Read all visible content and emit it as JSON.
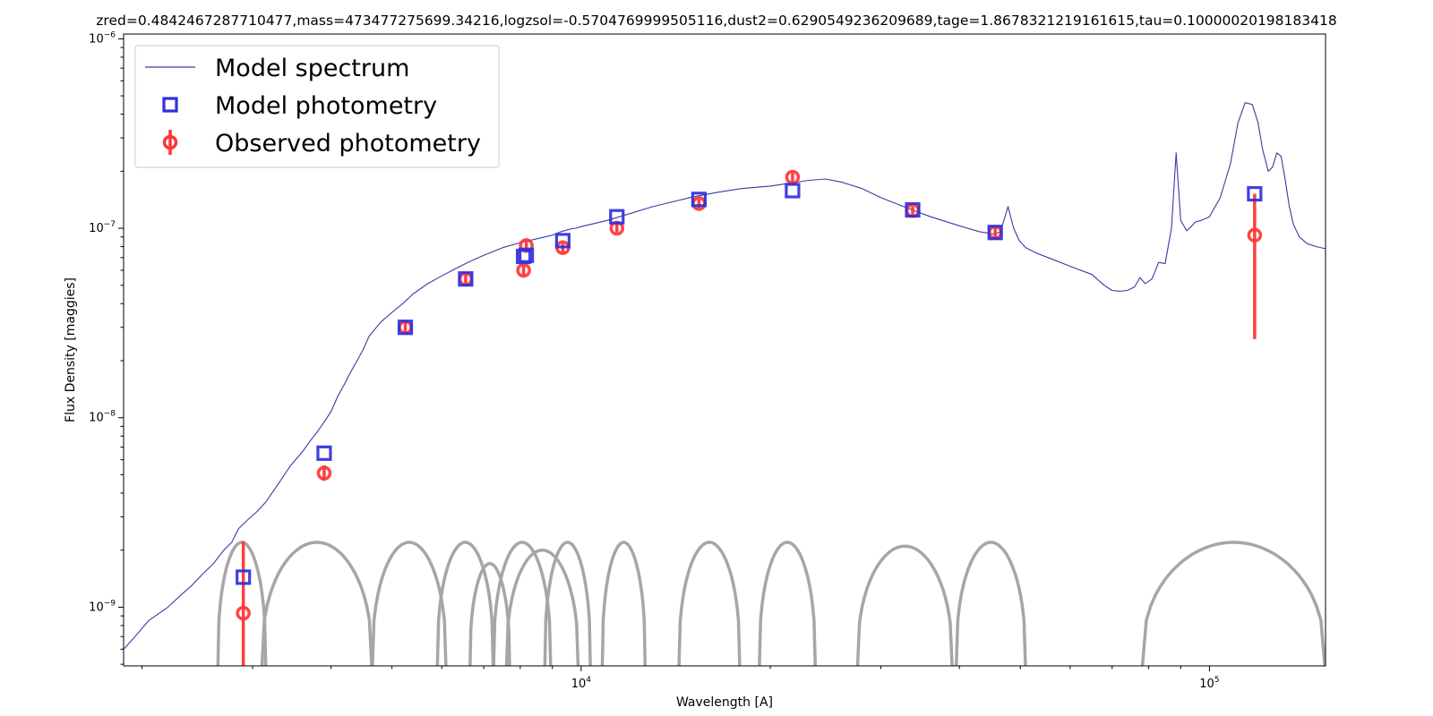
{
  "chart_data": {
    "type": "line",
    "title": "zred=0.4842467287710477,mass=473477275699.34216,logzsol=-0.5704769999505116,dust2=0.6290549236209689,tage=1.8678321219161615,tau=0.10000020198183418",
    "xlabel": "Wavelength [A]",
    "ylabel": "Flux Density [maggies]",
    "xscale": "log",
    "yscale": "log",
    "xlim": [
      1870,
      153000
    ],
    "ylim": [
      4.9e-10,
      1.06e-06
    ],
    "x_ticks": [
      {
        "value": 10000,
        "label": "10",
        "exp": "4"
      },
      {
        "value": 100000,
        "label": "10",
        "exp": "5"
      }
    ],
    "y_ticks": [
      {
        "value": 1e-09,
        "label": "10",
        "exp": "−9"
      },
      {
        "value": 1e-08,
        "label": "10",
        "exp": "−8"
      },
      {
        "value": 1e-07,
        "label": "10",
        "exp": "−7"
      },
      {
        "value": 1e-06,
        "label": "10",
        "exp": "−6"
      }
    ],
    "legend_position": "upper-left",
    "grid": false,
    "series": [
      {
        "name": "Model spectrum",
        "kind": "line",
        "color": "#3a3aa3",
        "x": [
          1870,
          1950,
          2050,
          2200,
          2300,
          2400,
          2500,
          2600,
          2700,
          2780,
          2850,
          2950,
          3050,
          3150,
          3300,
          3450,
          3600,
          3700,
          3800,
          3900,
          4000,
          4100,
          4200,
          4300,
          4400,
          4500,
          4600,
          4800,
          5000,
          5200,
          5400,
          5700,
          6000,
          6300,
          6600,
          7000,
          7500,
          8000,
          8500,
          9000,
          9300,
          9600,
          9800,
          10000,
          10500,
          11000,
          12000,
          13000,
          14000,
          15000,
          16500,
          18000,
          20000,
          21500,
          23000,
          24500,
          26000,
          28000,
          30000,
          33000,
          36000,
          40000,
          43000,
          45500,
          46500,
          47800,
          48800,
          49800,
          51000,
          53000,
          56000,
          60000,
          65000,
          68000,
          70000,
          72000,
          74000,
          76000,
          77500,
          79000,
          81000,
          83000,
          85000,
          87000,
          88500,
          90000,
          92000,
          93500,
          95000,
          97000,
          100000,
          104000,
          108000,
          111000,
          114000,
          117000,
          119500,
          121500,
          124000,
          126000,
          128000,
          130000,
          132000,
          134000,
          136000,
          139000,
          143000,
          148000,
          153000
        ],
        "y": [
          6e-10,
          7e-10,
          8.5e-10,
          1e-09,
          1.15e-09,
          1.3e-09,
          1.5e-09,
          1.7e-09,
          2e-09,
          2.2e-09,
          2.6e-09,
          2.9e-09,
          3.2e-09,
          3.6e-09,
          4.5e-09,
          5.6e-09,
          6.6e-09,
          7.5e-09,
          8.4e-09,
          9.5e-09,
          1.08e-08,
          1.3e-08,
          1.5e-08,
          1.75e-08,
          2e-08,
          2.3e-08,
          2.7e-08,
          3.2e-08,
          3.6e-08,
          4e-08,
          4.5e-08,
          5.1e-08,
          5.6e-08,
          6.1e-08,
          6.6e-08,
          7.2e-08,
          7.9e-08,
          8.4e-08,
          8.8e-08,
          9.2e-08,
          9.6e-08,
          9.9e-08,
          1e-07,
          1.02e-07,
          1.06e-07,
          1.1e-07,
          1.2e-07,
          1.3e-07,
          1.38e-07,
          1.46e-07,
          1.55e-07,
          1.62e-07,
          1.67e-07,
          1.73e-07,
          1.79e-07,
          1.82e-07,
          1.75e-07,
          1.62e-07,
          1.45e-07,
          1.28e-07,
          1.15e-07,
          1.03e-07,
          9.6e-08,
          9.3e-08,
          9.6e-08,
          1.3e-07,
          1e-07,
          8.6e-08,
          7.9e-08,
          7.4e-08,
          6.9e-08,
          6.3e-08,
          5.7e-08,
          5e-08,
          4.7e-08,
          4.65e-08,
          4.7e-08,
          4.9e-08,
          5.5e-08,
          5.1e-08,
          5.4e-08,
          6.6e-08,
          6.5e-08,
          1e-07,
          2.5e-07,
          1.1e-07,
          9.7e-08,
          1.02e-07,
          1.08e-07,
          1.1e-07,
          1.15e-07,
          1.45e-07,
          2.2e-07,
          3.6e-07,
          4.6e-07,
          4.5e-07,
          3.6e-07,
          2.6e-07,
          2e-07,
          2.1e-07,
          2.5e-07,
          2.4e-07,
          1.8e-07,
          1.3e-07,
          1.05e-07,
          9e-08,
          8.3e-08,
          8e-08,
          7.8e-08
        ]
      },
      {
        "name": "Model photometry",
        "kind": "markers",
        "marker": "square",
        "color": "#2f2fe0",
        "x": [
          2900,
          3900,
          5250,
          6550,
          8100,
          8180,
          9350,
          11400,
          15400,
          21700,
          33700,
          45600,
          118000
        ],
        "y": [
          1.44e-09,
          6.5e-09,
          3e-08,
          5.4e-08,
          7.1e-08,
          7.2e-08,
          8.6e-08,
          1.15e-07,
          1.42e-07,
          1.58e-07,
          1.25e-07,
          9.5e-08,
          1.52e-07
        ]
      },
      {
        "name": "Observed photometry",
        "kind": "errorbar",
        "marker": "circle",
        "color": "#ff3535",
        "x": [
          2900,
          3900,
          5250,
          6550,
          8100,
          8180,
          9350,
          11400,
          15400,
          21700,
          33700,
          45600,
          118000
        ],
        "y": [
          9.3e-10,
          5.1e-09,
          3e-08,
          5.4e-08,
          6e-08,
          8.1e-08,
          7.9e-08,
          1e-07,
          1.35e-07,
          1.86e-07,
          1.24e-07,
          9.5e-08,
          9.2e-08
        ],
        "yerr_low": [
          4.4e-10,
          4.5e-10,
          2e-09,
          3e-09,
          4e-09,
          4e-09,
          4e-09,
          5e-09,
          7e-09,
          1e-08,
          6e-09,
          5e-09,
          6.6e-08
        ],
        "yerr_high": [
          1.3e-09,
          5e-10,
          2e-09,
          3e-09,
          4e-09,
          4e-09,
          4e-09,
          5e-09,
          7e-09,
          1e-08,
          6e-09,
          5e-09,
          6e-08
        ]
      }
    ],
    "filter_curves": {
      "color": "#a6a6a6",
      "curves": [
        {
          "lo": 2640,
          "hi": 3150,
          "peak": 2.2e-09
        },
        {
          "lo": 3100,
          "hi": 4650,
          "peak": 2.2e-09
        },
        {
          "lo": 4650,
          "hi": 6100,
          "peak": 2.2e-09
        },
        {
          "lo": 5900,
          "hi": 7250,
          "peak": 2.2e-09
        },
        {
          "lo": 6650,
          "hi": 7700,
          "peak": 1.7e-09
        },
        {
          "lo": 7250,
          "hi": 8950,
          "peak": 2.2e-09
        },
        {
          "lo": 7600,
          "hi": 9900,
          "peak": 2e-09
        },
        {
          "lo": 8750,
          "hi": 10350,
          "peak": 2.2e-09
        },
        {
          "lo": 10800,
          "hi": 12650,
          "peak": 2.2e-09
        },
        {
          "lo": 14300,
          "hi": 17900,
          "peak": 2.2e-09
        },
        {
          "lo": 19200,
          "hi": 23600,
          "peak": 2.2e-09
        },
        {
          "lo": 27500,
          "hi": 39000,
          "peak": 2.1e-09
        },
        {
          "lo": 39500,
          "hi": 51000,
          "peak": 2.2e-09
        },
        {
          "lo": 78000,
          "hi": 153000,
          "peak": 2.2e-09
        }
      ]
    },
    "legend": [
      {
        "label": "Model spectrum",
        "symbol": "line",
        "color": "#3a3aa3"
      },
      {
        "label": "Model photometry",
        "symbol": "square",
        "color": "#2f2fe0"
      },
      {
        "label": "Observed photometry",
        "symbol": "circle-errorbar",
        "color": "#ff3535"
      }
    ]
  }
}
